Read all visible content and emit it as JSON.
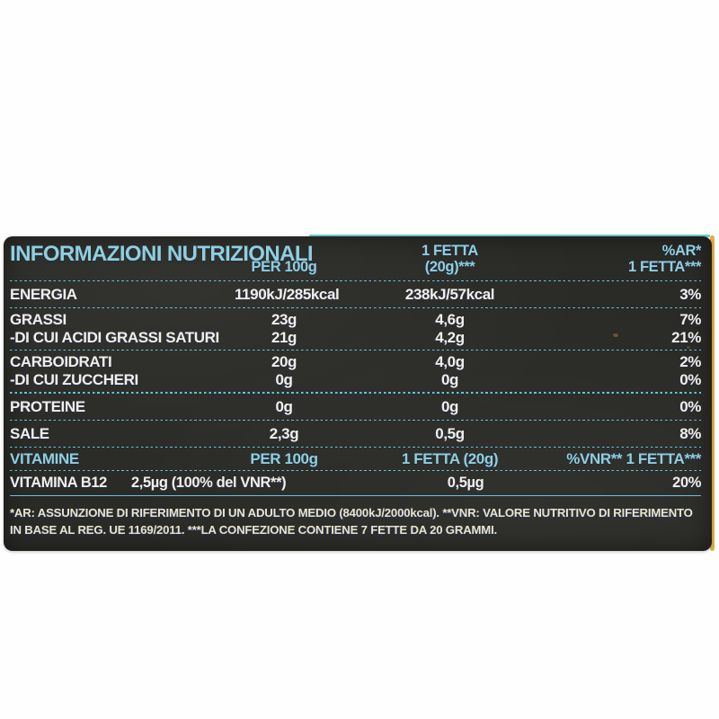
{
  "header": {
    "title": "INFORMAZIONI NUTRIZIONALI",
    "col_per100": "PER 100g",
    "col_fetta_line1": "1 FETTA",
    "col_fetta_line2": "(20g)***",
    "col_ar_line1": "%AR*",
    "col_ar_line2": "1 FETTA***"
  },
  "rows": [
    {
      "name": "ENERGIA",
      "per100": "1190kJ/285kcal",
      "fetta": "238kJ/57kcal",
      "ar": "3%"
    },
    {
      "name": "GRASSI",
      "per100": "23g",
      "fetta": "4,6g",
      "ar": "7%"
    },
    {
      "name": "-DI CUI ACIDI GRASSI SATURI",
      "per100": "21g",
      "fetta": "4,2g",
      "ar": "21%"
    },
    {
      "name": "CARBOIDRATI",
      "per100": "20g",
      "fetta": "4,0g",
      "ar": "2%"
    },
    {
      "name": "-DI CUI ZUCCHERI",
      "per100": "0g",
      "fetta": "0g",
      "ar": "0%"
    },
    {
      "name": "PROTEINE",
      "per100": "0g",
      "fetta": "0g",
      "ar": "0%"
    },
    {
      "name": "SALE",
      "per100": "2,3g",
      "fetta": "0,5g",
      "ar": "8%"
    }
  ],
  "vitamins_header": {
    "name": "VITAMINE",
    "per100": "PER 100g",
    "fetta": "1 FETTA (20g)",
    "ar": "%VNR** 1 FETTA***"
  },
  "vitamin_b12": {
    "name": "VITAMINA B12",
    "value": "2,5µg (100% del VNR**)",
    "fetta": "0,5µg",
    "ar": "20%"
  },
  "footnote": "*AR: ASSUNZIONE DI RIFERIMENTO DI UN ADULTO MEDIO (8400kJ/2000kcal). **VNR: VALORE NUTRITIVO DI RIFERIMENTO IN BASE AL REG. UE 1169/2011. ***LA CONFEZIONE CONTIENE 7 FETTE DA 20 GRAMMI.",
  "colors": {
    "accent_cyan": "#8ecfe0",
    "dots_cyan": "#66c4da",
    "text_white": "#f1efe8",
    "footnote_cream": "#ece4c2",
    "edge_yellow": "#dfae44",
    "edge_teal": "#6cc6cf",
    "label_black": "#2a2a27"
  }
}
